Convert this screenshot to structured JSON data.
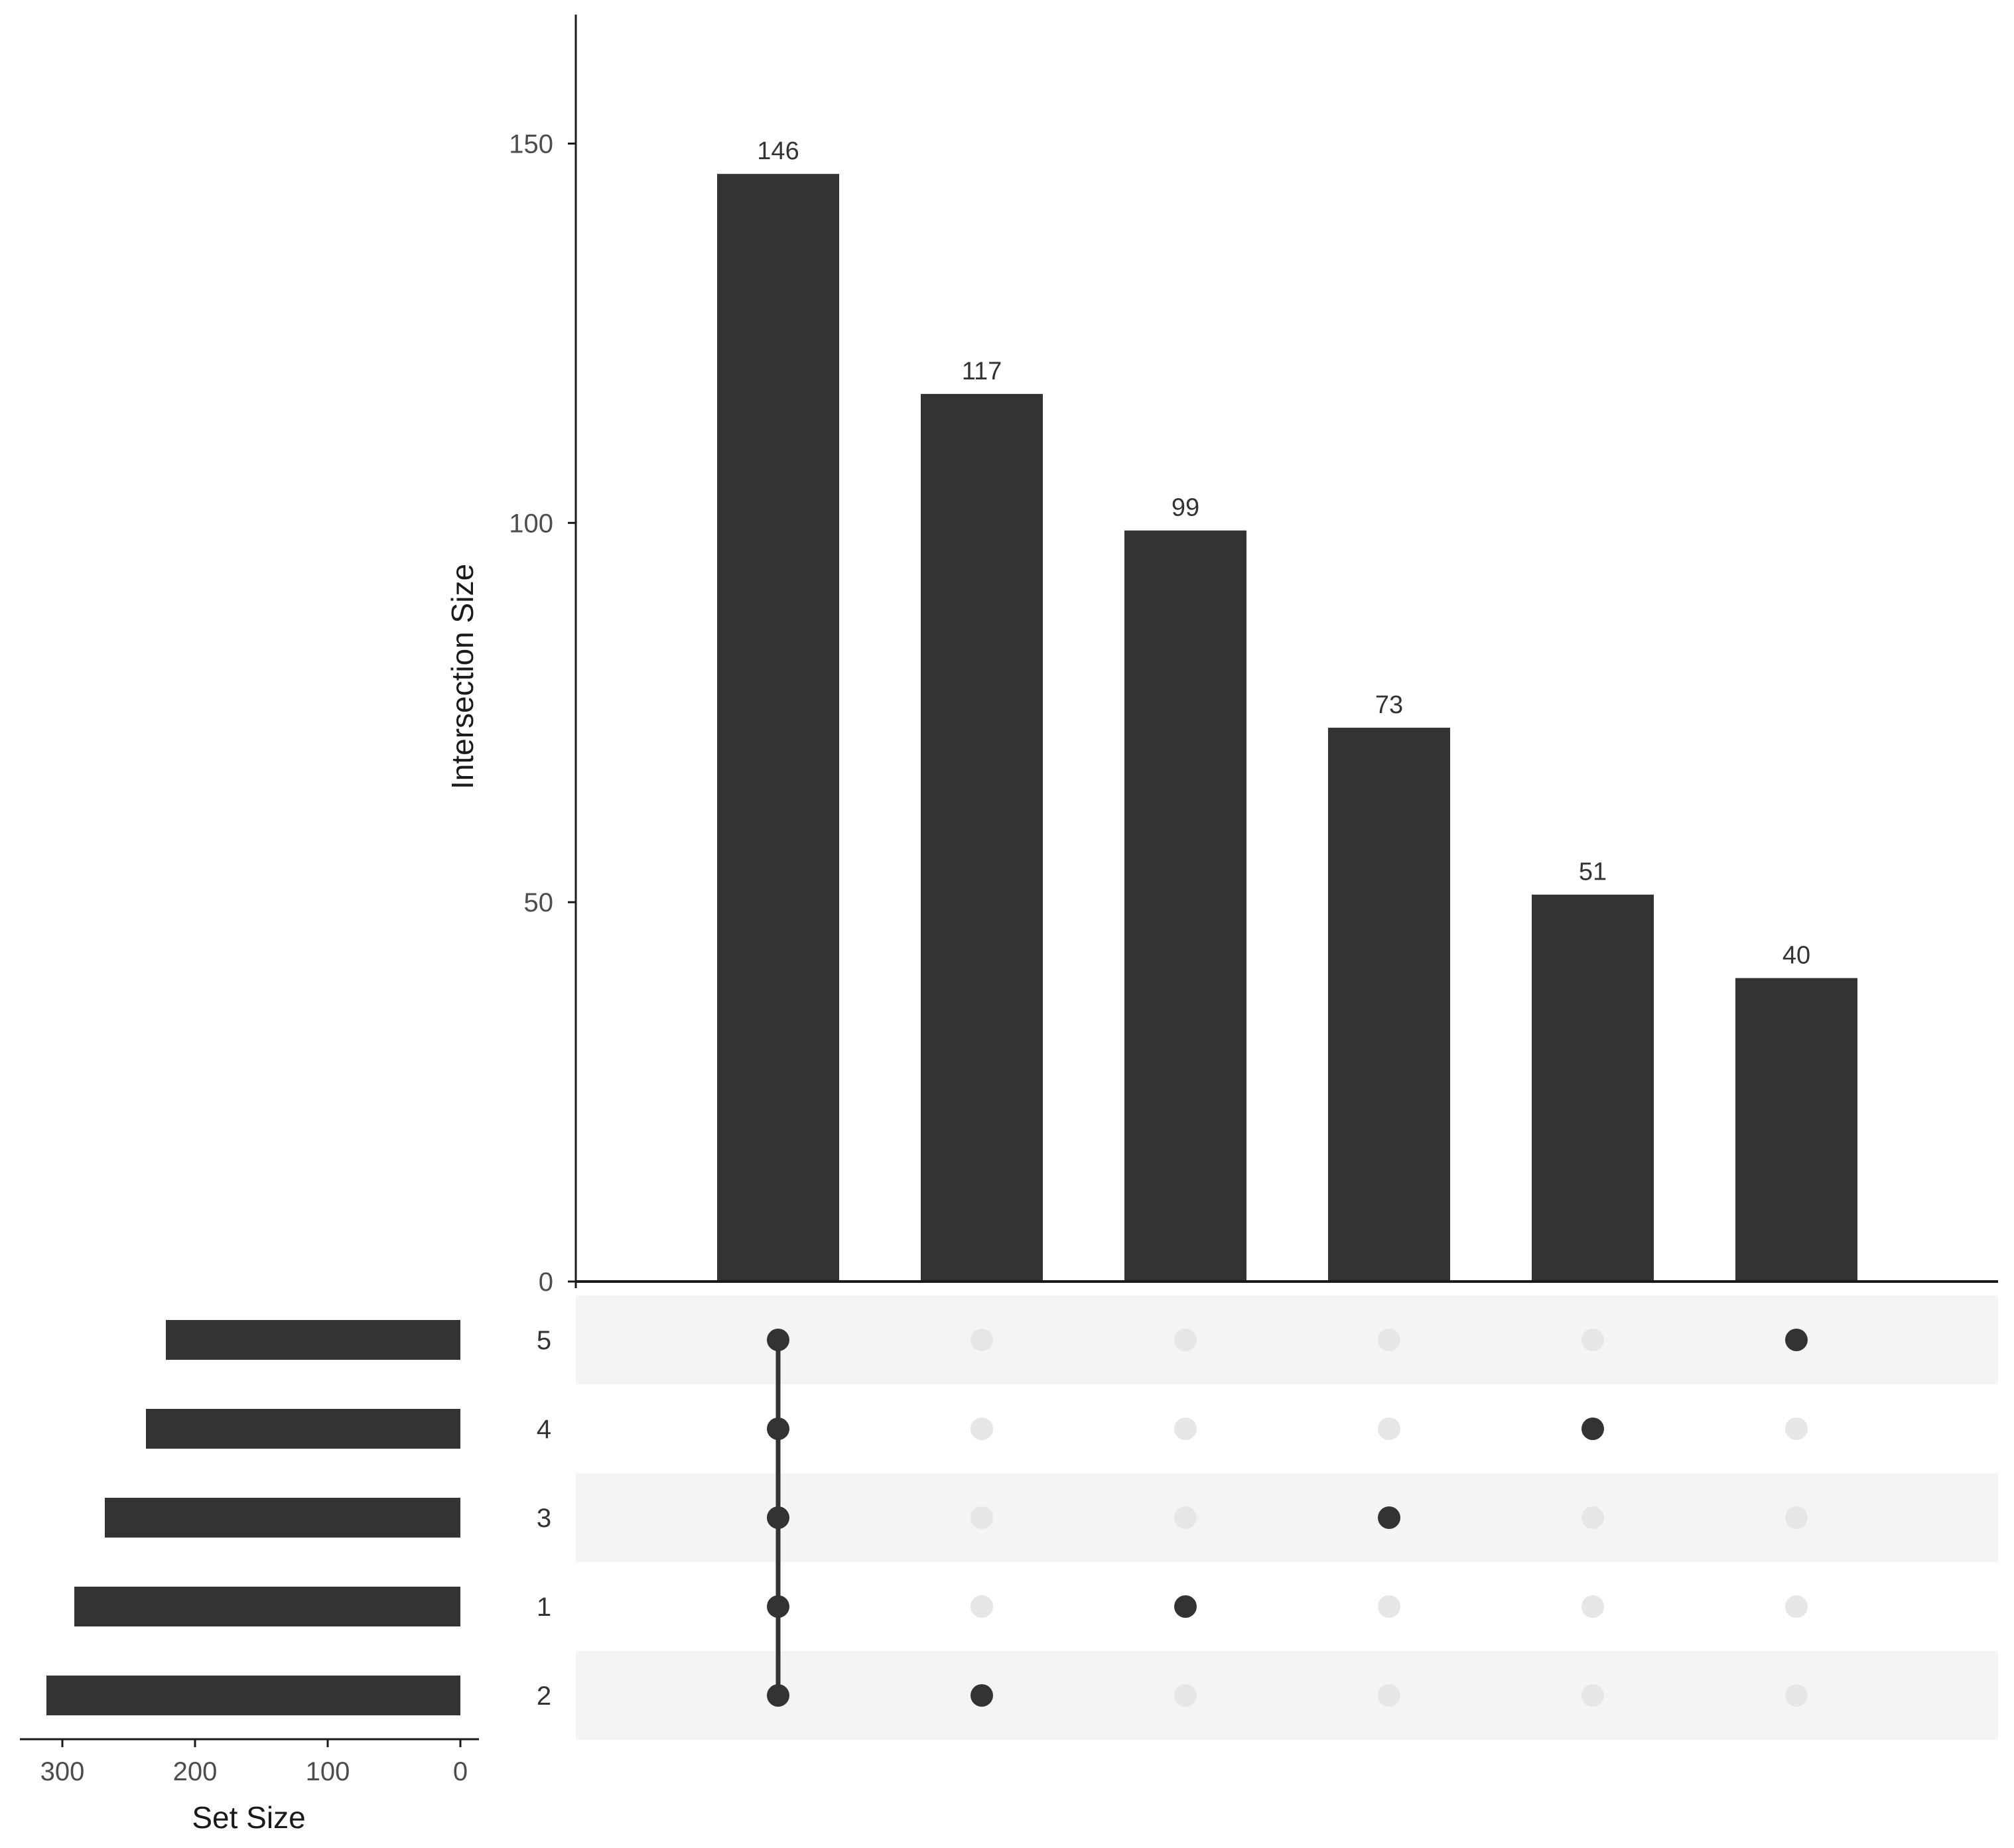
{
  "chart_data": {
    "type": "upset",
    "intersection_chart": {
      "type": "bar",
      "ylabel": "Intersection Size",
      "ylim": [
        0,
        167
      ],
      "yticks": [
        0,
        50,
        100,
        150
      ],
      "values": [
        146,
        117,
        99,
        73,
        51,
        40
      ],
      "value_labels": [
        "146",
        "117",
        "99",
        "73",
        "51",
        "40"
      ],
      "bar_color": "#333333"
    },
    "set_size_chart": {
      "type": "bar",
      "orientation": "horizontal",
      "xlabel": "Set Size",
      "xlim": [
        330,
        0
      ],
      "xticks": [
        300,
        200,
        100,
        0
      ],
      "sets": [
        "5",
        "4",
        "3",
        "1",
        "2"
      ],
      "values": [
        222,
        237,
        268,
        291,
        312
      ]
    },
    "matrix": {
      "rows": [
        "5",
        "4",
        "3",
        "1",
        "2"
      ],
      "columns": [
        [
          "5",
          "4",
          "3",
          "1",
          "2"
        ],
        [
          "2"
        ],
        [
          "1"
        ],
        [
          "3"
        ],
        [
          "4"
        ],
        [
          "5"
        ]
      ],
      "active_color": "#333333",
      "inactive_color": "#e6e6e6",
      "stripe_color": "#f4f4f4"
    }
  }
}
